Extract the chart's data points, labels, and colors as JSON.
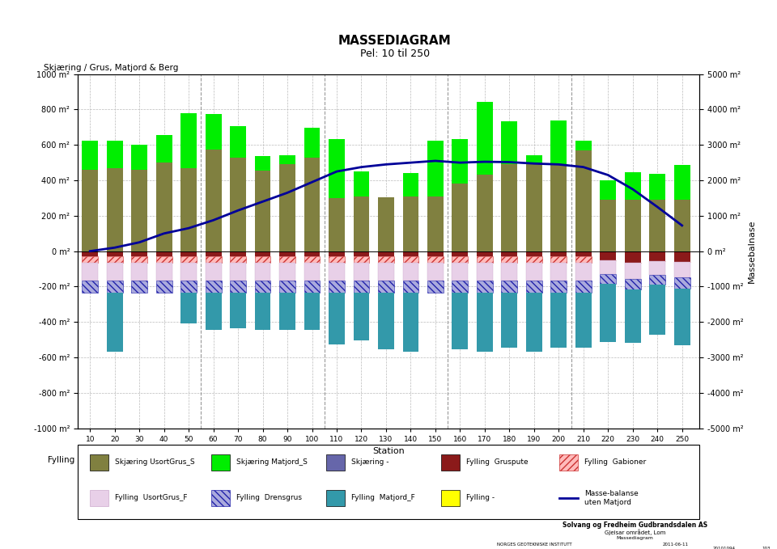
{
  "title": "MASSEDIAGRAM",
  "subtitle": "Pel: 10 til 250",
  "xlabel": "Station",
  "ylabel_left": "Skjæring / Grus, Matjord & Berg",
  "ylabel_right": "Massebalnase",
  "stations": [
    10,
    20,
    30,
    40,
    50,
    60,
    70,
    80,
    90,
    100,
    110,
    120,
    130,
    140,
    150,
    160,
    170,
    180,
    190,
    200,
    210,
    220,
    230,
    240,
    250
  ],
  "sk_usort": [
    460,
    470,
    460,
    500,
    470,
    575,
    530,
    455,
    490,
    530,
    300,
    310,
    305,
    310,
    310,
    380,
    430,
    490,
    490,
    490,
    570,
    290,
    290,
    290,
    290
  ],
  "sk_matjord": [
    165,
    155,
    140,
    155,
    310,
    200,
    175,
    80,
    50,
    165,
    335,
    140,
    0,
    130,
    315,
    255,
    415,
    245,
    50,
    250,
    55,
    110,
    155,
    145,
    195
  ],
  "fy_gruspute": [
    28,
    28,
    28,
    28,
    28,
    28,
    28,
    28,
    28,
    28,
    28,
    28,
    28,
    28,
    28,
    28,
    28,
    28,
    28,
    28,
    28,
    50,
    65,
    55,
    60
  ],
  "fy_gabioner": [
    38,
    38,
    38,
    38,
    38,
    38,
    38,
    38,
    38,
    38,
    38,
    38,
    38,
    38,
    38,
    38,
    38,
    38,
    38,
    38,
    38,
    0,
    0,
    0,
    0
  ],
  "fy_usortgrus": [
    100,
    100,
    100,
    100,
    100,
    100,
    100,
    100,
    100,
    100,
    100,
    100,
    100,
    100,
    100,
    100,
    100,
    100,
    100,
    100,
    100,
    80,
    90,
    80,
    90
  ],
  "fy_drensgrus": [
    70,
    70,
    70,
    70,
    70,
    70,
    70,
    70,
    70,
    70,
    70,
    70,
    70,
    70,
    70,
    70,
    70,
    70,
    70,
    70,
    70,
    55,
    62,
    55,
    62
  ],
  "fy_matjord": [
    0,
    330,
    0,
    0,
    170,
    210,
    200,
    210,
    210,
    210,
    290,
    270,
    320,
    330,
    0,
    320,
    330,
    310,
    330,
    310,
    310,
    330,
    300,
    280,
    320
  ],
  "masse_right": [
    0,
    100,
    250,
    500,
    650,
    875,
    1150,
    1400,
    1650,
    1950,
    2250,
    2375,
    2450,
    2500,
    2550,
    2500,
    2525,
    2515,
    2475,
    2450,
    2375,
    2150,
    1750,
    1250,
    725
  ],
  "vlines": [
    55,
    105,
    155,
    205
  ],
  "bar_width": 6.5,
  "col_sk_usort": "#808040",
  "col_sk_matjord": "#00ee00",
  "col_sk_other": "#6666aa",
  "col_fy_gruspute": "#8B1A1A",
  "col_fy_gab_face": "#ffbbbb",
  "col_fy_gab_edge": "#cc3333",
  "col_fy_usort_face": "#e8d0e8",
  "col_fy_dren_face": "#aaaadd",
  "col_fy_dren_edge": "#2222aa",
  "col_fy_matjord": "#3399aa",
  "col_masse": "#000099",
  "col_grid": "#bbbbbb",
  "col_vline": "#999999"
}
